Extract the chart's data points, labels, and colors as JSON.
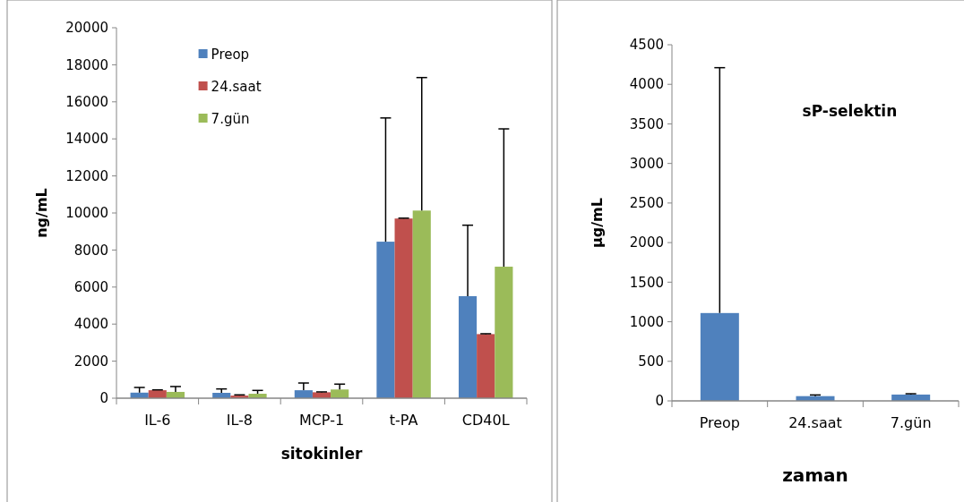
{
  "chart_data": [
    {
      "type": "bar",
      "xlabel": "sitokinler",
      "ylabel": "ng/mL",
      "categories": [
        "IL-6",
        "IL-8",
        "MCP-1",
        "t-PA",
        "CD40L"
      ],
      "ylim": [
        0,
        20000
      ],
      "yticks": [
        0,
        2000,
        4000,
        6000,
        8000,
        10000,
        12000,
        14000,
        16000,
        18000,
        20000
      ],
      "legend": "top left",
      "series": [
        {
          "name": "Preop",
          "color": "#4f81bd",
          "values": [
            300,
            290,
            430,
            8450,
            5510
          ],
          "errors": [
            [
              300,
              580
            ],
            [
              290,
              500
            ],
            [
              430,
              820
            ],
            [
              8450,
              15130
            ],
            [
              5510,
              9340
            ]
          ]
        },
        {
          "name": "24.saat",
          "color": "#c0504d",
          "values": [
            430,
            140,
            320,
            9700,
            3460
          ],
          "errors": [
            [
              430,
              450
            ],
            [
              140,
              180
            ],
            [
              320,
              340
            ],
            [
              9700,
              9720
            ],
            [
              3460,
              3480
            ]
          ]
        },
        {
          "name": "7.gün",
          "color": "#9bbb59",
          "values": [
            340,
            240,
            470,
            10130,
            7100
          ],
          "errors": [
            [
              340,
              630
            ],
            [
              240,
              420
            ],
            [
              470,
              760
            ],
            [
              10130,
              17310
            ],
            [
              7100,
              14540
            ]
          ]
        }
      ]
    },
    {
      "type": "bar",
      "title": "sP-selektin",
      "xlabel": "zaman",
      "ylabel": "µg/mL",
      "categories": [
        "Preop",
        "24.saat",
        "7.gün"
      ],
      "ylim": [
        0,
        4500
      ],
      "yticks": [
        0,
        500,
        1000,
        1500,
        2000,
        2500,
        3000,
        3500,
        4000,
        4500
      ],
      "series": [
        {
          "color": "#4f81bd",
          "values": [
            1110,
            60,
            80
          ],
          "errors": [
            [
              1110,
              4210
            ],
            [
              60,
              75
            ],
            [
              80,
              90
            ]
          ]
        }
      ]
    }
  ]
}
